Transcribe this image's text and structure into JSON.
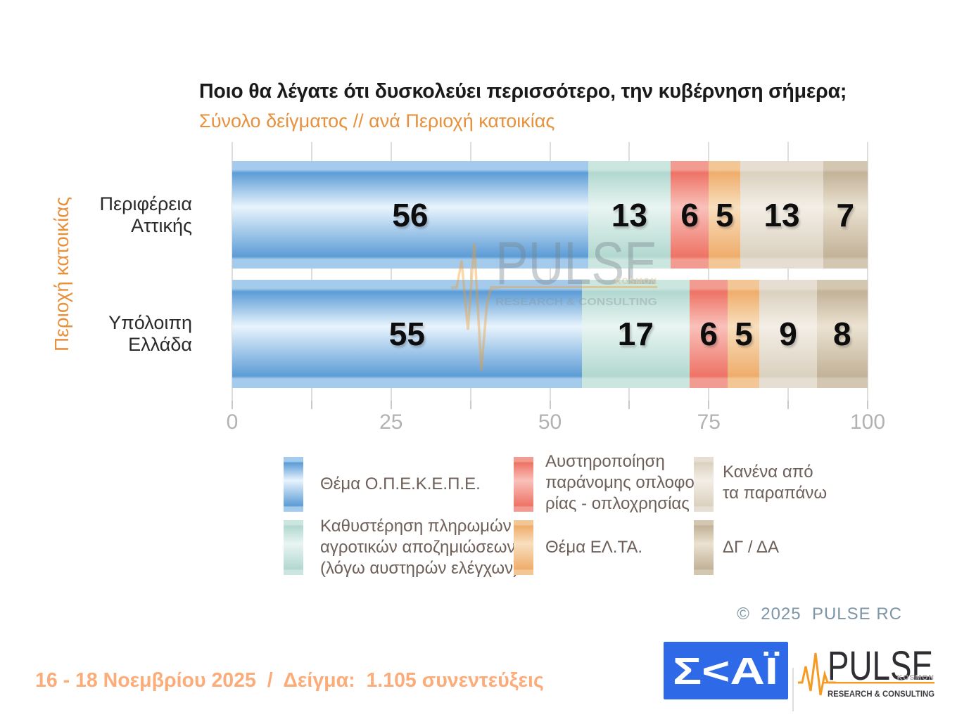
{
  "page": {
    "title": "Ποιο θα λέγατε ότι δυσκολεύει περισσότερο, την κυβέρνηση σήμερα;",
    "subtitle": "Σύνολο δείγματος // ανά Περιοχή κατοικίας"
  },
  "chart_data": {
    "type": "bar",
    "orientation": "horizontal",
    "stacked": true,
    "title": "Ποιο θα λέγατε ότι δυσκολεύει περισσότερο, την κυβέρνηση σήμερα;",
    "subtitle": "Σύνολο δείγματος // ανά Περιοχή κατοικίας",
    "y_axis_title": "Περιοχή κατοικίας",
    "categories": [
      "Περιφέρεια\nΑττικής",
      "Υπόλοιπη\nΕλλάδα"
    ],
    "series": [
      {
        "name": "Θέμα Ο.Π.Ε.Κ.Ε.Π.Ε.",
        "color_key": "blue",
        "values": [
          56,
          55
        ]
      },
      {
        "name": "Καθυστέρηση πληρωμών αγροτικών αποζημιώσεων (λόγω αυστηρών ελέγχων)",
        "color_key": "teal",
        "values": [
          13,
          17
        ]
      },
      {
        "name": "Αυστηροποίηση παράνομης οπλοφορίας - οπλοχρησίας",
        "color_key": "red",
        "values": [
          6,
          6
        ]
      },
      {
        "name": "Θέμα ΕΛ.ΤΑ.",
        "color_key": "orange",
        "values": [
          5,
          5
        ]
      },
      {
        "name": "Κανένα από τα παραπάνω",
        "color_key": "beige",
        "values": [
          13,
          9
        ]
      },
      {
        "name": "ΔΓ / ΔΑ",
        "color_key": "tan",
        "values": [
          7,
          8
        ]
      }
    ],
    "xlim": [
      0,
      100
    ],
    "x_ticks": [
      0,
      25,
      50,
      75,
      100
    ],
    "grid_step": 12.5,
    "grid": true,
    "value_labels": true,
    "legend_position": "bottom"
  },
  "legend": {
    "items": [
      {
        "color_key": "blue",
        "label": "Θέμα Ο.Π.Ε.Κ.Ε.Π.Ε."
      },
      {
        "color_key": "teal",
        "label": "Καθυστέρηση πληρωμών\nαγροτικών αποζημιώσεων\n(λόγω αυστηρών ελέγχων)"
      },
      {
        "color_key": "red",
        "label": "Αυστηροποίηση\nπαράνομης οπλοφο-\nρίας - οπλοχρησίας"
      },
      {
        "color_key": "orange",
        "label": "Θέμα ΕΛ.ΤΑ."
      },
      {
        "color_key": "beige",
        "label": "Κανένα από\nτα παραπάνω"
      },
      {
        "color_key": "tan",
        "label": "ΔΓ / ΔΑ"
      }
    ]
  },
  "watermark": {
    "brand": "PULSE",
    "sub": "KOSMON",
    "tagline": "RESEARCH & CONSULTING"
  },
  "footer": {
    "copyright": "©  2025  PULSE RC",
    "fieldwork": "16 - 18 Νοεμβρίου 2025  /  Δείγμα:  1.105 συνεντεύξεις",
    "skai_text": "Σ<ΑΪ",
    "pulse_brand": "PULSE",
    "pulse_sub": "KOSMON",
    "pulse_tagline": "RESEARCH & CONSULTING"
  },
  "colors": {
    "accent_orange": "#E8913C",
    "footer_orange": "#FBAC79",
    "skai_blue": "#2E6AE8",
    "pulse_orange": "#F59A23",
    "copyright_gray": "#7E95A6",
    "series": {
      "blue": {
        "edge": "#5C9CD6",
        "mid": "#E8F4FD",
        "cap": "#A4CBEC"
      },
      "teal": {
        "edge": "#B2D8D0",
        "mid": "#E9F5F2",
        "cap": "#CBE5DF"
      },
      "red": {
        "edge": "#EE7366",
        "mid": "#F9C1BA",
        "cap": "#F29B90"
      },
      "orange": {
        "edge": "#EFAD6C",
        "mid": "#F8DFBE",
        "cap": "#F3C795"
      },
      "beige": {
        "edge": "#DBD1C0",
        "mid": "#F3EEE6",
        "cap": "#E6DED2"
      },
      "tan": {
        "edge": "#C2B298",
        "mid": "#EBE2D1",
        "cap": "#D3C7B2"
      }
    }
  }
}
